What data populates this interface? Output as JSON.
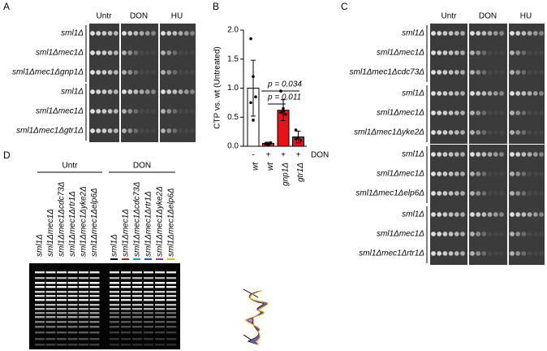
{
  "panel_a": {
    "label": "A",
    "columns": [
      "Untr",
      "DON",
      "HU"
    ],
    "rows": [
      "sml1Δ",
      "sml1Δmec1Δ",
      "sml1Δmec1Δgnp1Δ",
      "sml1Δ",
      "sml1Δmec1Δ",
      "sml1Δmec1Δgtr1Δ"
    ]
  },
  "chart_data": {
    "type": "bar",
    "panel_label": "B",
    "y_label": "CTP vs. wt (Untreated)",
    "categories": [
      "wt",
      "wt",
      "gnp1Δ",
      "gtr1Δ"
    ],
    "treatment_label": "DON",
    "treatment": [
      "-",
      "+",
      "+",
      "+"
    ],
    "values": [
      1.0,
      0.05,
      0.62,
      0.16
    ],
    "errors": [
      0.48,
      0.02,
      0.18,
      0.1
    ],
    "points": [
      [
        1.85,
        1.2,
        0.85,
        0.75,
        0.45
      ],
      [
        0.05,
        0.03,
        0.06,
        0.04
      ],
      [
        0.95,
        0.6,
        0.55,
        0.58,
        0.65
      ],
      [
        0.28,
        0.15,
        0.1,
        0.12
      ]
    ],
    "colors": [
      "#ffffff",
      "#e8141a",
      "#e8141a",
      "#e8141a"
    ],
    "ylim": [
      0,
      2.0
    ],
    "yticks": [
      {
        "value": 0,
        "label": "0.0"
      },
      0.5,
      {
        "value": 1,
        "label": "1.0"
      },
      1.5,
      {
        "value": 2,
        "label": "2.0"
      }
    ],
    "annotations": [
      "p = 0.034",
      "p = 0.011"
    ]
  },
  "panel_c": {
    "label": "C",
    "columns": [
      "Untr",
      "DON",
      "HU"
    ],
    "rows": [
      "sml1Δ",
      "sml1Δmec1Δ",
      "sml1Δmec1Δcdc73Δ",
      "sml1Δ",
      "sml1Δmec1Δ",
      "sml1Δmec1Δyke2Δ",
      "sml1Δ",
      "sml1Δmec1Δ",
      "sml1Δmec1Δelp6Δ",
      "sml1Δ",
      "sml1Δmec1Δ",
      "sml1Δmec1Δrtr1Δ"
    ]
  },
  "panel_d": {
    "label": "D",
    "groups": [
      "Untr",
      "DON"
    ],
    "lanes": [
      "sml1Δ",
      "sml1Δmec1Δ",
      "sml1Δmec1Δcdc73Δ",
      "sml1Δmec1Δrtr1Δ",
      "sml1Δmec1Δyke2Δ",
      "sml1Δmec1Δelp6Δ"
    ]
  }
}
